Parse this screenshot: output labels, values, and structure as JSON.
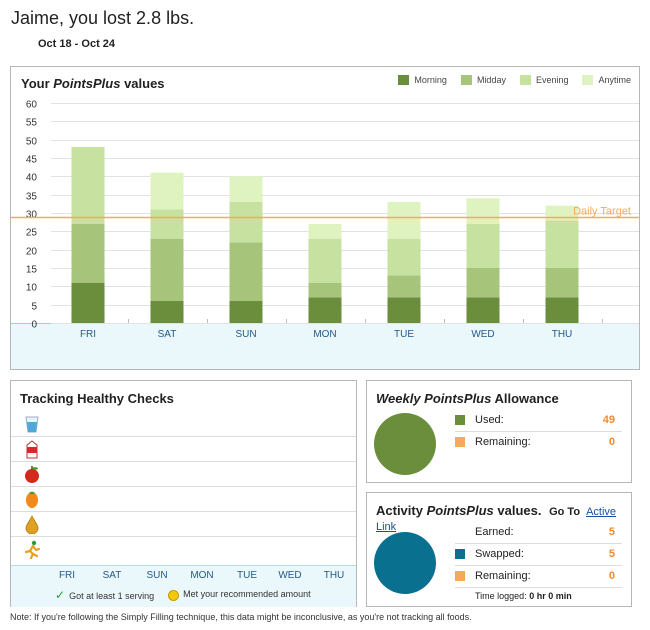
{
  "header": {
    "title": "Jaime, you lost 2.8 lbs.",
    "date_range": "Oct 18 - Oct 24"
  },
  "chart_panel": {
    "title_prefix": "Your ",
    "title_em": "PointsPlus",
    "title_suffix": " values"
  },
  "chart_data": {
    "type": "bar",
    "stacked": true,
    "categories": [
      "FRI",
      "SAT",
      "SUN",
      "MON",
      "TUE",
      "WED",
      "THU"
    ],
    "series": [
      {
        "name": "Morning",
        "color": "#6a8e3c",
        "values": [
          11,
          6,
          6,
          7,
          7,
          7,
          7
        ]
      },
      {
        "name": "Midday",
        "color": "#a6c47a",
        "values": [
          16,
          17,
          16,
          4,
          6,
          8,
          8
        ]
      },
      {
        "name": "Evening",
        "color": "#c7e2a0",
        "values": [
          21,
          8,
          11,
          12,
          10,
          12,
          13
        ]
      },
      {
        "name": "Anytime",
        "color": "#def3c0",
        "values": [
          0,
          10,
          7,
          4,
          10,
          7,
          4
        ]
      }
    ],
    "yticks": [
      0,
      5,
      10,
      15,
      20,
      25,
      30,
      35,
      40,
      45,
      50,
      55,
      60
    ],
    "ylim": [
      0,
      60
    ],
    "target": {
      "label": "Daily Target",
      "value": 29,
      "color": "#f5a95a"
    }
  },
  "tracking": {
    "title": "Tracking Healthy Checks",
    "icons": [
      "water-glass-icon",
      "milk-carton-icon",
      "apple-icon",
      "orange-icon",
      "oil-drop-icon",
      "running-person-icon"
    ],
    "days": [
      "FRI",
      "SAT",
      "SUN",
      "MON",
      "TUE",
      "WED",
      "THU"
    ],
    "legend_check": "Got at least 1 serving",
    "legend_smile": "Met your recommended amount",
    "check_glyph": "✓"
  },
  "allowance": {
    "title_em": "Weekly PointsPlus",
    "title_suffix": " Allowance",
    "used_label": "Used:",
    "used_value": "49",
    "remaining_label": "Remaining:",
    "remaining_value": "0",
    "used_color": "#6a8e3c",
    "remaining_color": "#f5a95a",
    "pie_used_fraction": 1.0
  },
  "activity": {
    "title_prefix": "Activity ",
    "title_em": "PointsPlus",
    "title_suffix": " values.",
    "goto_label": "Go To",
    "link_label": "Active Link",
    "earned_label": "Earned:",
    "earned_value": "5",
    "swapped_label": "Swapped:",
    "swapped_value": "5",
    "remaining_label": "Remaining:",
    "remaining_value": "0",
    "time_label": "Time logged:",
    "time_value": "0 hr 0 min",
    "swapped_color": "#0a7090",
    "remaining_color": "#f5a95a",
    "pie_swapped_fraction": 1.0
  },
  "footer": {
    "note": "Note: If you're following the Simply Filling technique, this data might be inconclusive, as you're not tracking all foods."
  }
}
